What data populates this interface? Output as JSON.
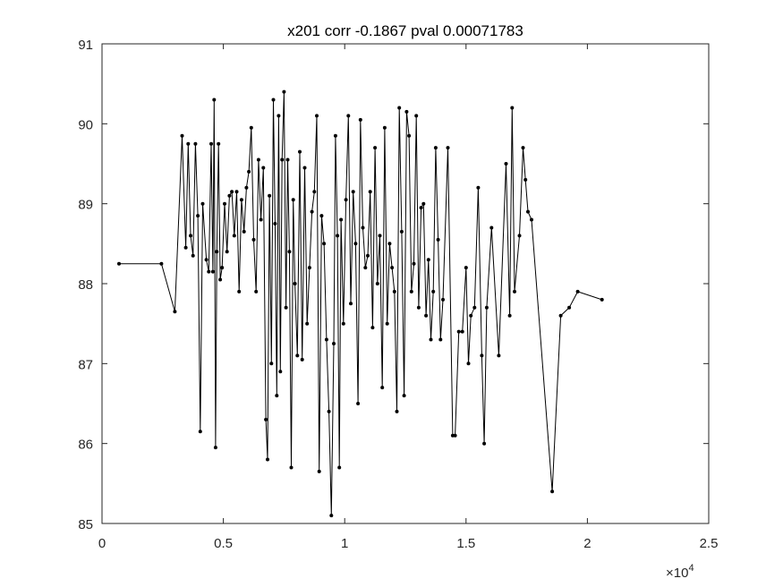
{
  "chart_data": {
    "type": "line",
    "title": "x201 corr -0.1867 pval 0.00071783",
    "xlabel": "",
    "ylabel": "",
    "xlim": [
      0,
      25000
    ],
    "ylim": [
      85,
      91
    ],
    "x_ticks": [
      0,
      5000,
      10000,
      15000,
      20000,
      25000
    ],
    "x_tick_labels": [
      "0",
      "0.5",
      "1",
      "1.5",
      "2",
      "2.5"
    ],
    "x_exponent_base": "×10",
    "x_exponent_power": "4",
    "y_ticks": [
      85,
      86,
      87,
      88,
      89,
      90,
      91
    ],
    "y_tick_labels": [
      "85",
      "86",
      "87",
      "88",
      "89",
      "90",
      "91"
    ],
    "grid": false,
    "legend": "none",
    "line_color": "#000000",
    "marker": "dot",
    "series": [
      {
        "x": [
          700,
          2450,
          3000,
          3300,
          3450,
          3550,
          3650,
          3750,
          3850,
          3950,
          4050,
          4150,
          4300,
          4400,
          4500,
          4570,
          4620,
          4680,
          4730,
          4800,
          4870,
          4950,
          5050,
          5150,
          5250,
          5350,
          5450,
          5550,
          5650,
          5750,
          5850,
          5950,
          6050,
          6150,
          6250,
          6350,
          6450,
          6550,
          6650,
          6750,
          6820,
          6900,
          6980,
          7060,
          7130,
          7200,
          7280,
          7350,
          7420,
          7500,
          7580,
          7650,
          7720,
          7800,
          7880,
          7950,
          8050,
          8150,
          8250,
          8350,
          8450,
          8550,
          8650,
          8750,
          8850,
          8950,
          9050,
          9150,
          9250,
          9350,
          9450,
          9550,
          9620,
          9700,
          9780,
          9850,
          9950,
          10050,
          10150,
          10250,
          10350,
          10450,
          10550,
          10650,
          10750,
          10850,
          10950,
          11050,
          11150,
          11250,
          11350,
          11450,
          11550,
          11650,
          11750,
          11850,
          11950,
          12050,
          12150,
          12250,
          12350,
          12450,
          12550,
          12650,
          12750,
          12850,
          12950,
          13050,
          13150,
          13250,
          13350,
          13450,
          13550,
          13650,
          13750,
          13850,
          13950,
          14050,
          14250,
          14450,
          14550,
          14700,
          14850,
          15000,
          15100,
          15200,
          15350,
          15500,
          15650,
          15750,
          15850,
          16050,
          16350,
          16650,
          16800,
          16900,
          17000,
          17200,
          17350,
          17450,
          17550,
          17700,
          18550,
          18900,
          19250,
          19600,
          20600
        ],
        "y": [
          88.25,
          88.25,
          87.65,
          89.85,
          88.45,
          89.75,
          88.6,
          88.35,
          89.75,
          88.85,
          86.15,
          89.0,
          88.3,
          88.15,
          89.75,
          88.15,
          90.3,
          85.95,
          88.4,
          89.75,
          88.05,
          88.2,
          89.0,
          88.4,
          89.1,
          89.15,
          88.6,
          89.15,
          87.9,
          89.05,
          88.65,
          89.2,
          89.4,
          89.95,
          88.55,
          87.9,
          89.55,
          88.8,
          89.45,
          86.3,
          85.8,
          89.1,
          87.0,
          90.3,
          88.75,
          86.6,
          90.1,
          86.9,
          89.55,
          90.4,
          87.7,
          89.55,
          88.4,
          85.7,
          89.05,
          88.0,
          87.1,
          89.65,
          87.05,
          89.45,
          87.5,
          88.2,
          88.9,
          89.15,
          90.1,
          85.65,
          88.85,
          88.5,
          87.3,
          86.4,
          85.1,
          87.25,
          89.85,
          88.6,
          85.7,
          88.8,
          87.5,
          89.05,
          90.1,
          87.75,
          89.15,
          88.5,
          86.5,
          90.05,
          88.7,
          88.2,
          88.35,
          89.15,
          87.45,
          89.7,
          88.0,
          88.6,
          86.7,
          89.95,
          87.5,
          88.5,
          88.2,
          87.9,
          86.4,
          90.2,
          88.65,
          86.6,
          90.15,
          89.85,
          87.9,
          88.25,
          90.1,
          87.7,
          88.95,
          89.0,
          87.6,
          88.3,
          87.3,
          87.9,
          89.7,
          88.55,
          87.3,
          87.8,
          89.7,
          86.1,
          86.1,
          87.4,
          87.4,
          88.2,
          87.0,
          87.6,
          87.7,
          89.2,
          87.1,
          86.0,
          87.7,
          88.7,
          87.1,
          89.5,
          87.6,
          90.2,
          87.9,
          88.6,
          89.7,
          89.3,
          88.9,
          88.8,
          85.4,
          87.6,
          87.7,
          87.9,
          87.8
        ]
      }
    ]
  }
}
